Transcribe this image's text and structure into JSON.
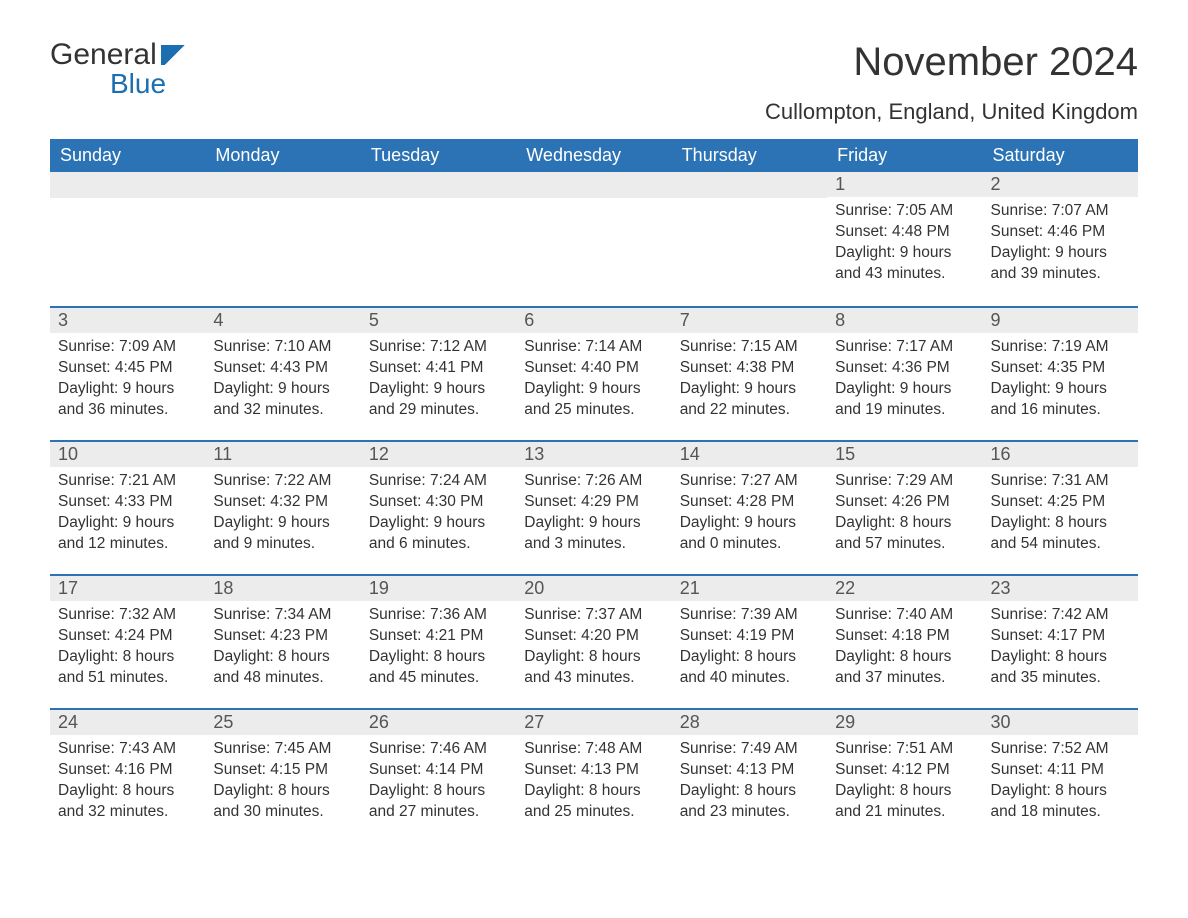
{
  "brand": {
    "word1": "General",
    "word2": "Blue"
  },
  "title": {
    "month": "November 2024",
    "location": "Cullompton, England, United Kingdom"
  },
  "colors": {
    "header_bg": "#2b73b5",
    "header_fg": "#ffffff",
    "bar_bg": "#ececec",
    "bar_border": "#2b73b5",
    "text": "#333333",
    "brand_blue": "#1b6fb1",
    "page_bg": "#ffffff"
  },
  "fonts": {
    "title_size_pt": 30,
    "location_size_pt": 16,
    "dayhdr_size_pt": 14,
    "body_size_pt": 12
  },
  "calendar": {
    "type": "table",
    "columns": [
      "Sunday",
      "Monday",
      "Tuesday",
      "Wednesday",
      "Thursday",
      "Friday",
      "Saturday"
    ],
    "weeks": [
      [
        null,
        null,
        null,
        null,
        null,
        {
          "n": "1",
          "sunrise": "7:05 AM",
          "sunset": "4:48 PM",
          "day_h": 9,
          "day_m": 43
        },
        {
          "n": "2",
          "sunrise": "7:07 AM",
          "sunset": "4:46 PM",
          "day_h": 9,
          "day_m": 39
        }
      ],
      [
        {
          "n": "3",
          "sunrise": "7:09 AM",
          "sunset": "4:45 PM",
          "day_h": 9,
          "day_m": 36
        },
        {
          "n": "4",
          "sunrise": "7:10 AM",
          "sunset": "4:43 PM",
          "day_h": 9,
          "day_m": 32
        },
        {
          "n": "5",
          "sunrise": "7:12 AM",
          "sunset": "4:41 PM",
          "day_h": 9,
          "day_m": 29
        },
        {
          "n": "6",
          "sunrise": "7:14 AM",
          "sunset": "4:40 PM",
          "day_h": 9,
          "day_m": 25
        },
        {
          "n": "7",
          "sunrise": "7:15 AM",
          "sunset": "4:38 PM",
          "day_h": 9,
          "day_m": 22
        },
        {
          "n": "8",
          "sunrise": "7:17 AM",
          "sunset": "4:36 PM",
          "day_h": 9,
          "day_m": 19
        },
        {
          "n": "9",
          "sunrise": "7:19 AM",
          "sunset": "4:35 PM",
          "day_h": 9,
          "day_m": 16
        }
      ],
      [
        {
          "n": "10",
          "sunrise": "7:21 AM",
          "sunset": "4:33 PM",
          "day_h": 9,
          "day_m": 12
        },
        {
          "n": "11",
          "sunrise": "7:22 AM",
          "sunset": "4:32 PM",
          "day_h": 9,
          "day_m": 9
        },
        {
          "n": "12",
          "sunrise": "7:24 AM",
          "sunset": "4:30 PM",
          "day_h": 9,
          "day_m": 6
        },
        {
          "n": "13",
          "sunrise": "7:26 AM",
          "sunset": "4:29 PM",
          "day_h": 9,
          "day_m": 3
        },
        {
          "n": "14",
          "sunrise": "7:27 AM",
          "sunset": "4:28 PM",
          "day_h": 9,
          "day_m": 0
        },
        {
          "n": "15",
          "sunrise": "7:29 AM",
          "sunset": "4:26 PM",
          "day_h": 8,
          "day_m": 57
        },
        {
          "n": "16",
          "sunrise": "7:31 AM",
          "sunset": "4:25 PM",
          "day_h": 8,
          "day_m": 54
        }
      ],
      [
        {
          "n": "17",
          "sunrise": "7:32 AM",
          "sunset": "4:24 PM",
          "day_h": 8,
          "day_m": 51
        },
        {
          "n": "18",
          "sunrise": "7:34 AM",
          "sunset": "4:23 PM",
          "day_h": 8,
          "day_m": 48
        },
        {
          "n": "19",
          "sunrise": "7:36 AM",
          "sunset": "4:21 PM",
          "day_h": 8,
          "day_m": 45
        },
        {
          "n": "20",
          "sunrise": "7:37 AM",
          "sunset": "4:20 PM",
          "day_h": 8,
          "day_m": 43
        },
        {
          "n": "21",
          "sunrise": "7:39 AM",
          "sunset": "4:19 PM",
          "day_h": 8,
          "day_m": 40
        },
        {
          "n": "22",
          "sunrise": "7:40 AM",
          "sunset": "4:18 PM",
          "day_h": 8,
          "day_m": 37
        },
        {
          "n": "23",
          "sunrise": "7:42 AM",
          "sunset": "4:17 PM",
          "day_h": 8,
          "day_m": 35
        }
      ],
      [
        {
          "n": "24",
          "sunrise": "7:43 AM",
          "sunset": "4:16 PM",
          "day_h": 8,
          "day_m": 32
        },
        {
          "n": "25",
          "sunrise": "7:45 AM",
          "sunset": "4:15 PM",
          "day_h": 8,
          "day_m": 30
        },
        {
          "n": "26",
          "sunrise": "7:46 AM",
          "sunset": "4:14 PM",
          "day_h": 8,
          "day_m": 27
        },
        {
          "n": "27",
          "sunrise": "7:48 AM",
          "sunset": "4:13 PM",
          "day_h": 8,
          "day_m": 25
        },
        {
          "n": "28",
          "sunrise": "7:49 AM",
          "sunset": "4:13 PM",
          "day_h": 8,
          "day_m": 23
        },
        {
          "n": "29",
          "sunrise": "7:51 AM",
          "sunset": "4:12 PM",
          "day_h": 8,
          "day_m": 21
        },
        {
          "n": "30",
          "sunrise": "7:52 AM",
          "sunset": "4:11 PM",
          "day_h": 8,
          "day_m": 18
        }
      ]
    ],
    "labels": {
      "sunrise": "Sunrise:",
      "sunset": "Sunset:",
      "daylight": "Daylight:",
      "hours_word": "hours",
      "and_word": "and",
      "minutes_word": "minutes."
    }
  }
}
